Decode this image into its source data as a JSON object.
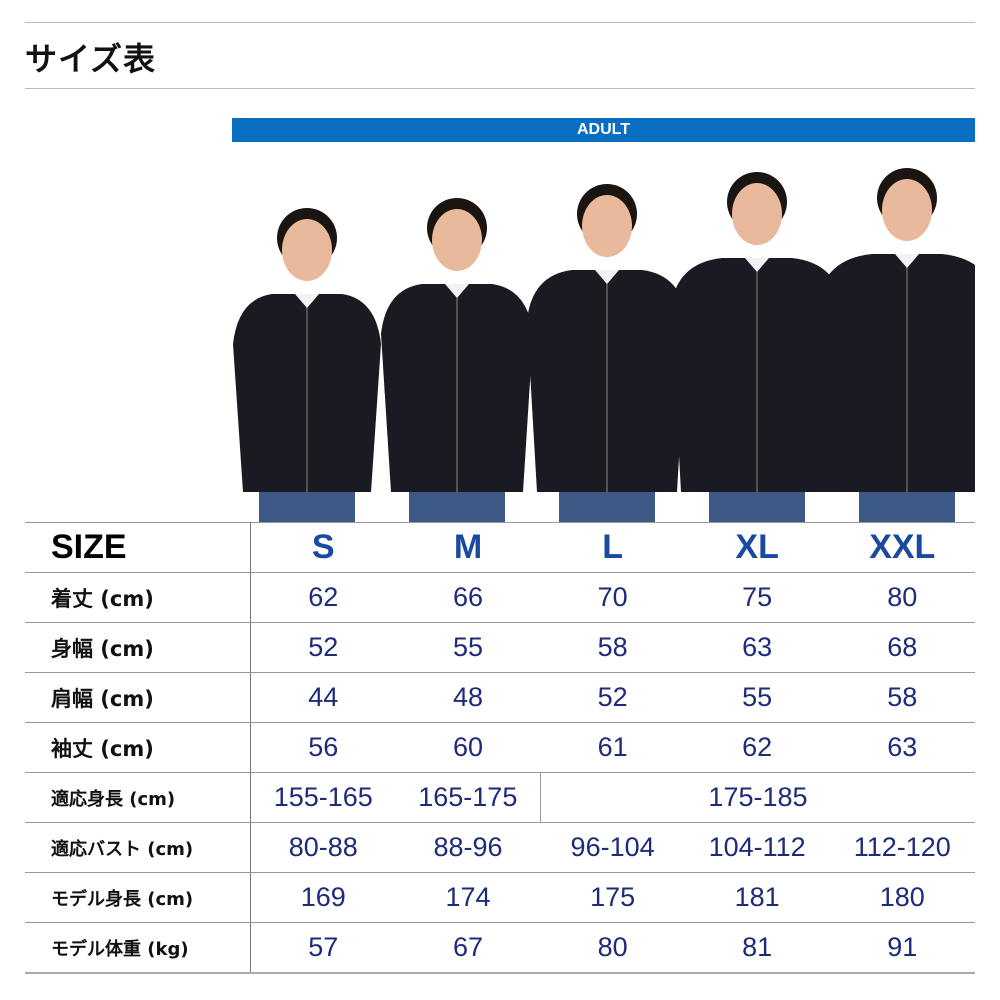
{
  "title": "サイズ表",
  "band_label": "ADULT",
  "photo_models": [
    "S",
    "M",
    "L",
    "XL",
    "XXL"
  ],
  "colors": {
    "band": "#0a6fc2",
    "size_header": "#1a4aa0",
    "values": "#1e2a7a"
  },
  "table": {
    "header_label": "SIZE",
    "sizes": [
      "S",
      "M",
      "L",
      "XL",
      "XXL"
    ],
    "rows": [
      {
        "label": "着丈 (cm)",
        "values": [
          "62",
          "66",
          "70",
          "75",
          "80"
        ]
      },
      {
        "label": "身幅 (cm)",
        "values": [
          "52",
          "55",
          "58",
          "63",
          "68"
        ]
      },
      {
        "label": "肩幅 (cm)",
        "values": [
          "44",
          "48",
          "52",
          "55",
          "58"
        ]
      },
      {
        "label": "袖丈 (cm)",
        "values": [
          "56",
          "60",
          "61",
          "62",
          "63"
        ]
      },
      {
        "label": "適応身長 (cm)",
        "values": [
          "155-165",
          "165-175",
          "175-185"
        ]
      },
      {
        "label": "適応バスト (cm)",
        "values": [
          "80-88",
          "88-96",
          "96-104",
          "104-112",
          "112-120"
        ]
      },
      {
        "label": "モデル身長 (cm)",
        "values": [
          "169",
          "174",
          "175",
          "181",
          "180"
        ]
      },
      {
        "label": "モデル体重 (kg)",
        "values": [
          "57",
          "67",
          "80",
          "81",
          "91"
        ]
      }
    ]
  }
}
